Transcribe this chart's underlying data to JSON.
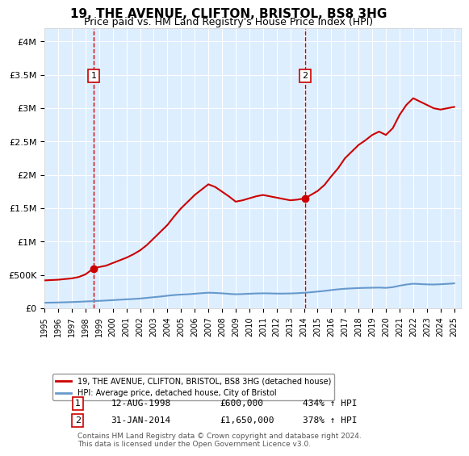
{
  "title": "19, THE AVENUE, CLIFTON, BRISTOL, BS8 3HG",
  "subtitle": "Price paid vs. HM Land Registry's House Price Index (HPI)",
  "legend_line1": "19, THE AVENUE, CLIFTON, BRISTOL, BS8 3HG (detached house)",
  "legend_line2": "HPI: Average price, detached house, City of Bristol",
  "annotation1_label": "1",
  "annotation1_date": "12-AUG-1998",
  "annotation1_price": "£600,000",
  "annotation1_hpi": "434% ↑ HPI",
  "annotation2_label": "2",
  "annotation2_date": "31-JAN-2014",
  "annotation2_price": "£1,650,000",
  "annotation2_hpi": "378% ↑ HPI",
  "footnote": "Contains HM Land Registry data © Crown copyright and database right 2024.\nThis data is licensed under the Open Government Licence v3.0.",
  "xlim": [
    1995.0,
    2025.5
  ],
  "ylim": [
    0,
    4200000
  ],
  "yticks": [
    0,
    500000,
    1000000,
    1500000,
    2000000,
    2500000,
    3000000,
    3500000,
    4000000
  ],
  "ytick_labels": [
    "£0",
    "£500K",
    "£1M",
    "£1.5M",
    "£2M",
    "£2.5M",
    "£3M",
    "£3.5M",
    "£4M"
  ],
  "xticks": [
    1995,
    1996,
    1997,
    1998,
    1999,
    2000,
    2001,
    2002,
    2003,
    2004,
    2005,
    2006,
    2007,
    2008,
    2009,
    2010,
    2011,
    2012,
    2013,
    2014,
    2015,
    2016,
    2017,
    2018,
    2019,
    2020,
    2021,
    2022,
    2023,
    2024,
    2025
  ],
  "property_color": "#cc0000",
  "hpi_color": "#6699cc",
  "background_color": "#ddeeff",
  "grid_color": "#ffffff",
  "vline_color": "#cc0000",
  "marker1_x": 1998.6,
  "marker1_y": 600000,
  "marker2_x": 2014.08,
  "marker2_y": 1650000,
  "property_x": [
    1995.0,
    1995.5,
    1996.0,
    1996.5,
    1997.0,
    1997.5,
    1998.0,
    1998.6,
    1999.0,
    1999.5,
    2000.0,
    2000.5,
    2001.0,
    2001.5,
    2002.0,
    2002.5,
    2003.0,
    2003.5,
    2004.0,
    2004.5,
    2005.0,
    2005.5,
    2006.0,
    2006.5,
    2007.0,
    2007.5,
    2008.0,
    2008.5,
    2009.0,
    2009.5,
    2010.0,
    2010.5,
    2011.0,
    2011.5,
    2012.0,
    2012.5,
    2013.0,
    2013.5,
    2014.08,
    2014.5,
    2015.0,
    2015.5,
    2016.0,
    2016.5,
    2017.0,
    2017.5,
    2018.0,
    2018.5,
    2019.0,
    2019.5,
    2020.0,
    2020.5,
    2021.0,
    2021.5,
    2022.0,
    2022.5,
    2023.0,
    2023.5,
    2024.0,
    2024.5,
    2025.0
  ],
  "property_y": [
    420000,
    425000,
    430000,
    440000,
    450000,
    470000,
    510000,
    600000,
    620000,
    640000,
    680000,
    720000,
    760000,
    810000,
    870000,
    950000,
    1050000,
    1150000,
    1250000,
    1380000,
    1500000,
    1600000,
    1700000,
    1780000,
    1860000,
    1820000,
    1750000,
    1680000,
    1600000,
    1620000,
    1650000,
    1680000,
    1700000,
    1680000,
    1660000,
    1640000,
    1620000,
    1630000,
    1650000,
    1700000,
    1760000,
    1850000,
    1980000,
    2100000,
    2250000,
    2350000,
    2450000,
    2520000,
    2600000,
    2650000,
    2600000,
    2700000,
    2900000,
    3050000,
    3150000,
    3100000,
    3050000,
    3000000,
    2980000,
    3000000,
    3020000
  ],
  "hpi_x": [
    1995.0,
    1995.5,
    1996.0,
    1996.5,
    1997.0,
    1997.5,
    1998.0,
    1998.5,
    1999.0,
    1999.5,
    2000.0,
    2000.5,
    2001.0,
    2001.5,
    2002.0,
    2002.5,
    2003.0,
    2003.5,
    2004.0,
    2004.5,
    2005.0,
    2005.5,
    2006.0,
    2006.5,
    2007.0,
    2007.5,
    2008.0,
    2008.5,
    2009.0,
    2009.5,
    2010.0,
    2010.5,
    2011.0,
    2011.5,
    2012.0,
    2012.5,
    2013.0,
    2013.5,
    2014.0,
    2014.5,
    2015.0,
    2015.5,
    2016.0,
    2016.5,
    2017.0,
    2017.5,
    2018.0,
    2018.5,
    2019.0,
    2019.5,
    2020.0,
    2020.5,
    2021.0,
    2021.5,
    2022.0,
    2022.5,
    2023.0,
    2023.5,
    2024.0,
    2024.5,
    2025.0
  ],
  "hpi_y": [
    85000,
    87000,
    89000,
    92000,
    95000,
    99000,
    104000,
    108000,
    113000,
    118000,
    124000,
    130000,
    136000,
    141000,
    148000,
    158000,
    168000,
    178000,
    190000,
    200000,
    207000,
    212000,
    220000,
    228000,
    235000,
    232000,
    226000,
    218000,
    212000,
    215000,
    220000,
    224000,
    226000,
    225000,
    222000,
    222000,
    224000,
    228000,
    234000,
    242000,
    252000,
    262000,
    275000,
    286000,
    295000,
    300000,
    305000,
    308000,
    310000,
    312000,
    308000,
    318000,
    340000,
    358000,
    370000,
    365000,
    360000,
    358000,
    362000,
    368000,
    375000
  ]
}
